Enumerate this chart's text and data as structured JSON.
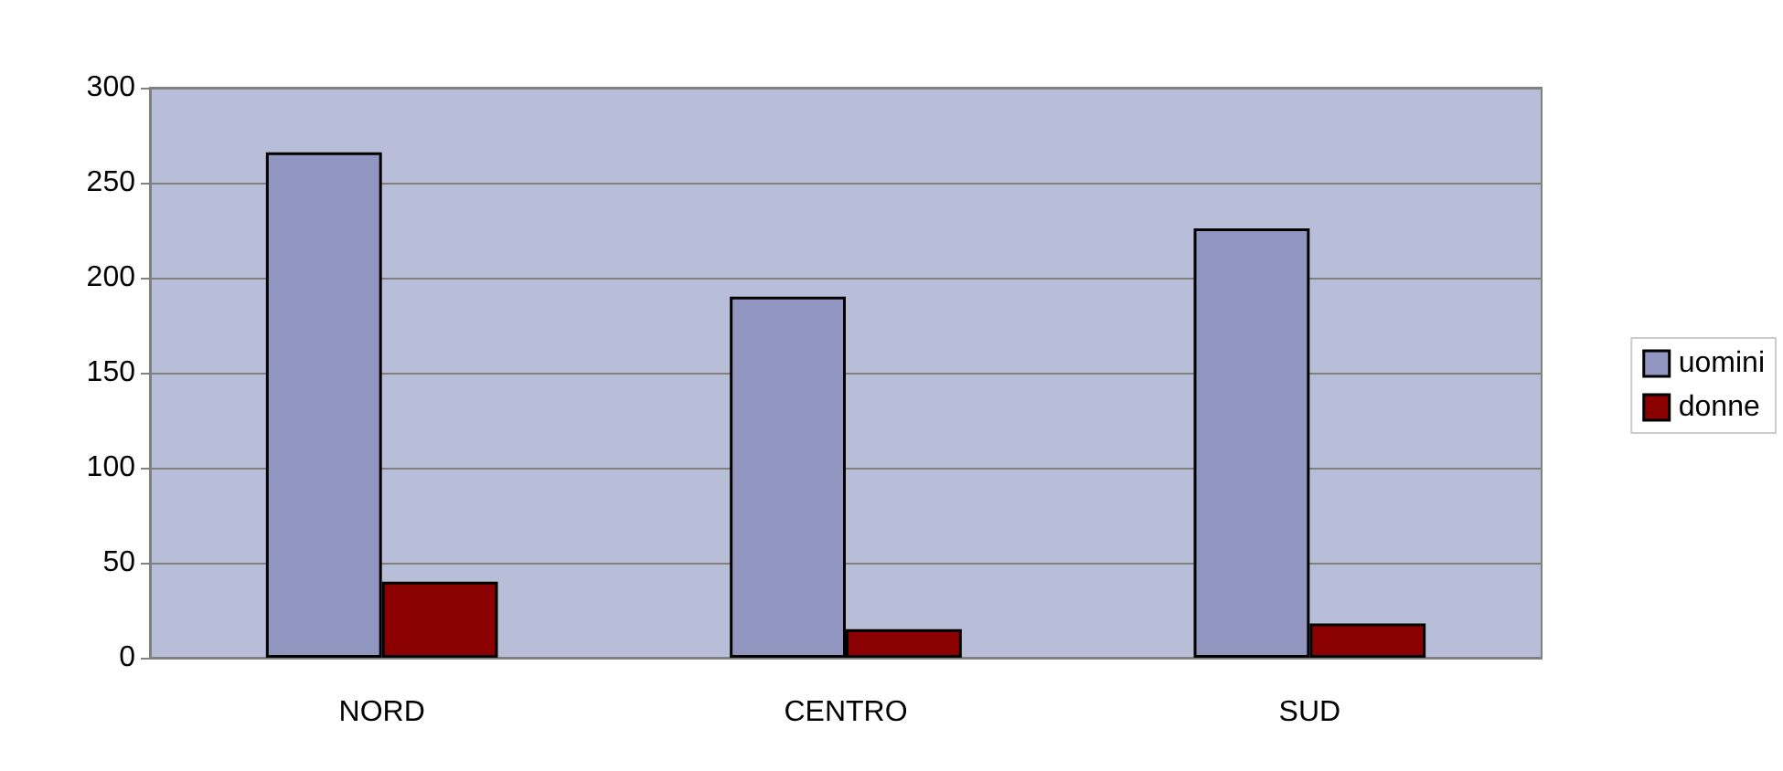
{
  "chart_data": {
    "type": "bar",
    "categories": [
      "NORD",
      "CENTRO",
      "SUD"
    ],
    "series": [
      {
        "name": "uomini",
        "color": "#9096c0",
        "values": [
          266,
          190,
          226
        ]
      },
      {
        "name": "donne",
        "color": "#8b0000",
        "values": [
          40,
          15,
          18
        ]
      }
    ],
    "ylim": [
      0,
      300
    ],
    "yticks": [
      0,
      50,
      100,
      150,
      200,
      250,
      300
    ],
    "grid": "y",
    "legend": "right"
  }
}
